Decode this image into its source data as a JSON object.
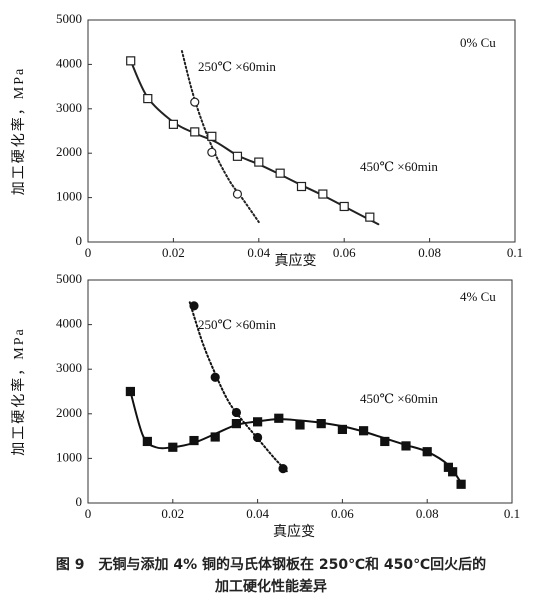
{
  "chart_data": [
    {
      "type": "scatter",
      "annotation": "0% Cu",
      "x_label": "真应变",
      "y_label": "加工硬化率，MPa",
      "xlim": [
        0,
        0.1
      ],
      "xticks": [
        0,
        0.02,
        0.04,
        0.06,
        0.08,
        0.1
      ],
      "ylim": [
        0,
        5000
      ],
      "yticks": [
        0,
        1000,
        2000,
        3000,
        4000,
        5000
      ],
      "series": [
        {
          "name": "250℃ ×60min",
          "marker": "circle",
          "filled": false,
          "dashed": true,
          "color": "#222",
          "x": [
            0.025,
            0.029,
            0.035
          ],
          "values": [
            3150,
            2020,
            1080
          ],
          "fit_x": [
            0.022,
            0.025,
            0.029,
            0.033,
            0.036,
            0.04
          ],
          "fit_values": [
            4300,
            3200,
            2150,
            1400,
            1000,
            450
          ]
        },
        {
          "name": "450℃ ×60min",
          "marker": "square",
          "filled": false,
          "dashed": false,
          "color": "#222",
          "x": [
            0.01,
            0.014,
            0.02,
            0.025,
            0.029,
            0.035,
            0.04,
            0.045,
            0.05,
            0.055,
            0.06,
            0.066
          ],
          "values": [
            4080,
            3230,
            2650,
            2480,
            2380,
            1930,
            1800,
            1550,
            1250,
            1080,
            800,
            560
          ],
          "fit_x": [
            0.01,
            0.014,
            0.02,
            0.025,
            0.03,
            0.035,
            0.04,
            0.045,
            0.05,
            0.055,
            0.06,
            0.068
          ],
          "fit_values": [
            4080,
            3250,
            2700,
            2450,
            2250,
            1950,
            1750,
            1520,
            1280,
            1050,
            800,
            400
          ]
        }
      ]
    },
    {
      "type": "scatter",
      "annotation": "4% Cu",
      "x_label": "真应变",
      "y_label": "加工硬化率，MPa",
      "xlim": [
        0,
        0.1
      ],
      "xticks": [
        0,
        0.02,
        0.04,
        0.06,
        0.08,
        0.1
      ],
      "ylim": [
        0,
        5000
      ],
      "yticks": [
        0,
        1000,
        2000,
        3000,
        4000,
        5000
      ],
      "series": [
        {
          "name": "250℃ ×60min",
          "marker": "circle",
          "filled": true,
          "dashed": true,
          "color": "#111",
          "x": [
            0.025,
            0.03,
            0.035,
            0.04,
            0.046
          ],
          "values": [
            4420,
            2820,
            2030,
            1470,
            770
          ],
          "fit_x": [
            0.024,
            0.027,
            0.03,
            0.033,
            0.036,
            0.04,
            0.044,
            0.047
          ],
          "fit_values": [
            4500,
            3600,
            2900,
            2300,
            1900,
            1450,
            1000,
            700
          ]
        },
        {
          "name": "450℃ ×60min",
          "marker": "square",
          "filled": true,
          "dashed": false,
          "color": "#111",
          "x": [
            0.01,
            0.014,
            0.02,
            0.025,
            0.03,
            0.035,
            0.04,
            0.045,
            0.05,
            0.055,
            0.06,
            0.065,
            0.07,
            0.075,
            0.08,
            0.085,
            0.086,
            0.088
          ],
          "values": [
            2500,
            1380,
            1250,
            1400,
            1480,
            1780,
            1820,
            1900,
            1750,
            1780,
            1650,
            1620,
            1380,
            1280,
            1150,
            800,
            700,
            420
          ],
          "fit_x": [
            0.01,
            0.013,
            0.016,
            0.02,
            0.025,
            0.03,
            0.035,
            0.04,
            0.045,
            0.05,
            0.055,
            0.06,
            0.065,
            0.07,
            0.075,
            0.08,
            0.085,
            0.088
          ],
          "fit_values": [
            2500,
            1500,
            1250,
            1250,
            1350,
            1550,
            1750,
            1830,
            1880,
            1850,
            1800,
            1720,
            1600,
            1450,
            1300,
            1150,
            850,
            450
          ]
        }
      ]
    }
  ],
  "caption": {
    "line1": "图 9　无铜与添加 4% 铜的马氏体钢板在 250℃和 450℃回火后的",
    "line2": "加工硬化性能差异"
  }
}
